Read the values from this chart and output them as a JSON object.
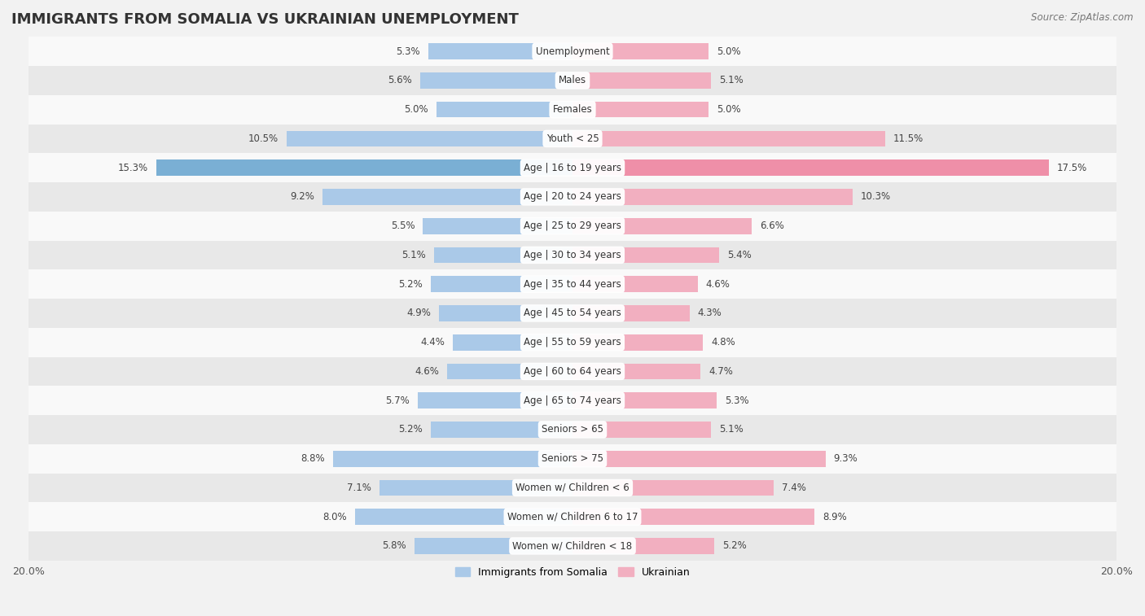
{
  "title": "IMMIGRANTS FROM SOMALIA VS UKRAINIAN UNEMPLOYMENT",
  "source": "Source: ZipAtlas.com",
  "categories": [
    "Unemployment",
    "Males",
    "Females",
    "Youth < 25",
    "Age | 16 to 19 years",
    "Age | 20 to 24 years",
    "Age | 25 to 29 years",
    "Age | 30 to 34 years",
    "Age | 35 to 44 years",
    "Age | 45 to 54 years",
    "Age | 55 to 59 years",
    "Age | 60 to 64 years",
    "Age | 65 to 74 years",
    "Seniors > 65",
    "Seniors > 75",
    "Women w/ Children < 6",
    "Women w/ Children 6 to 17",
    "Women w/ Children < 18"
  ],
  "somalia_values": [
    5.3,
    5.6,
    5.0,
    10.5,
    15.3,
    9.2,
    5.5,
    5.1,
    5.2,
    4.9,
    4.4,
    4.6,
    5.7,
    5.2,
    8.8,
    7.1,
    8.0,
    5.8
  ],
  "ukrainian_values": [
    5.0,
    5.1,
    5.0,
    11.5,
    17.5,
    10.3,
    6.6,
    5.4,
    4.6,
    4.3,
    4.8,
    4.7,
    5.3,
    5.1,
    9.3,
    7.4,
    8.9,
    5.2
  ],
  "somalia_color": "#aac9e8",
  "ukrainian_color": "#f2afc0",
  "somalia_highlight_color": "#7aafd4",
  "ukrainian_highlight_color": "#ef8fa8",
  "highlight_row": 4,
  "bar_height": 0.55,
  "xlim": 20.0,
  "background_color": "#f2f2f2",
  "row_bg_light": "#f9f9f9",
  "row_bg_dark": "#e8e8e8",
  "legend_somalia": "Immigrants from Somalia",
  "legend_ukrainian": "Ukrainian",
  "title_fontsize": 13,
  "label_fontsize": 8.5,
  "value_fontsize": 8.5,
  "source_fontsize": 8.5
}
